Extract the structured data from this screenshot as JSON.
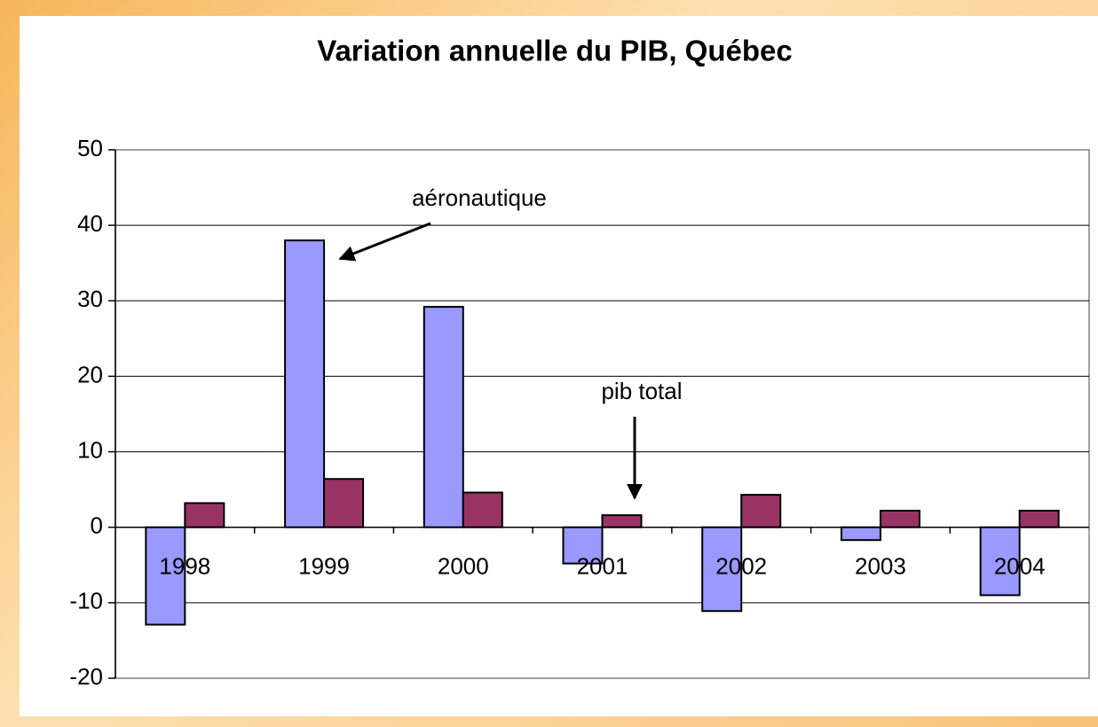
{
  "chart_data": {
    "type": "bar",
    "title": "Variation annuelle du PIB, Québec",
    "categories": [
      "1998",
      "1999",
      "2000",
      "2001",
      "2002",
      "2003",
      "2004"
    ],
    "series": [
      {
        "color": "#9999ff",
        "values": [
          -12.9,
          38,
          29.2,
          -4.8,
          -11.1,
          -1.7,
          -9
        ]
      },
      {
        "color": "#993366",
        "values": [
          3.2,
          6.4,
          4.6,
          1.6,
          4.3,
          2.2,
          2.2
        ]
      }
    ],
    "annotations": [
      "aéronautique",
      "pib total"
    ],
    "ylim": [
      -20,
      50
    ],
    "yticks": [
      -20,
      -10,
      0,
      10,
      20,
      30,
      40,
      50
    ],
    "grid": true
  }
}
